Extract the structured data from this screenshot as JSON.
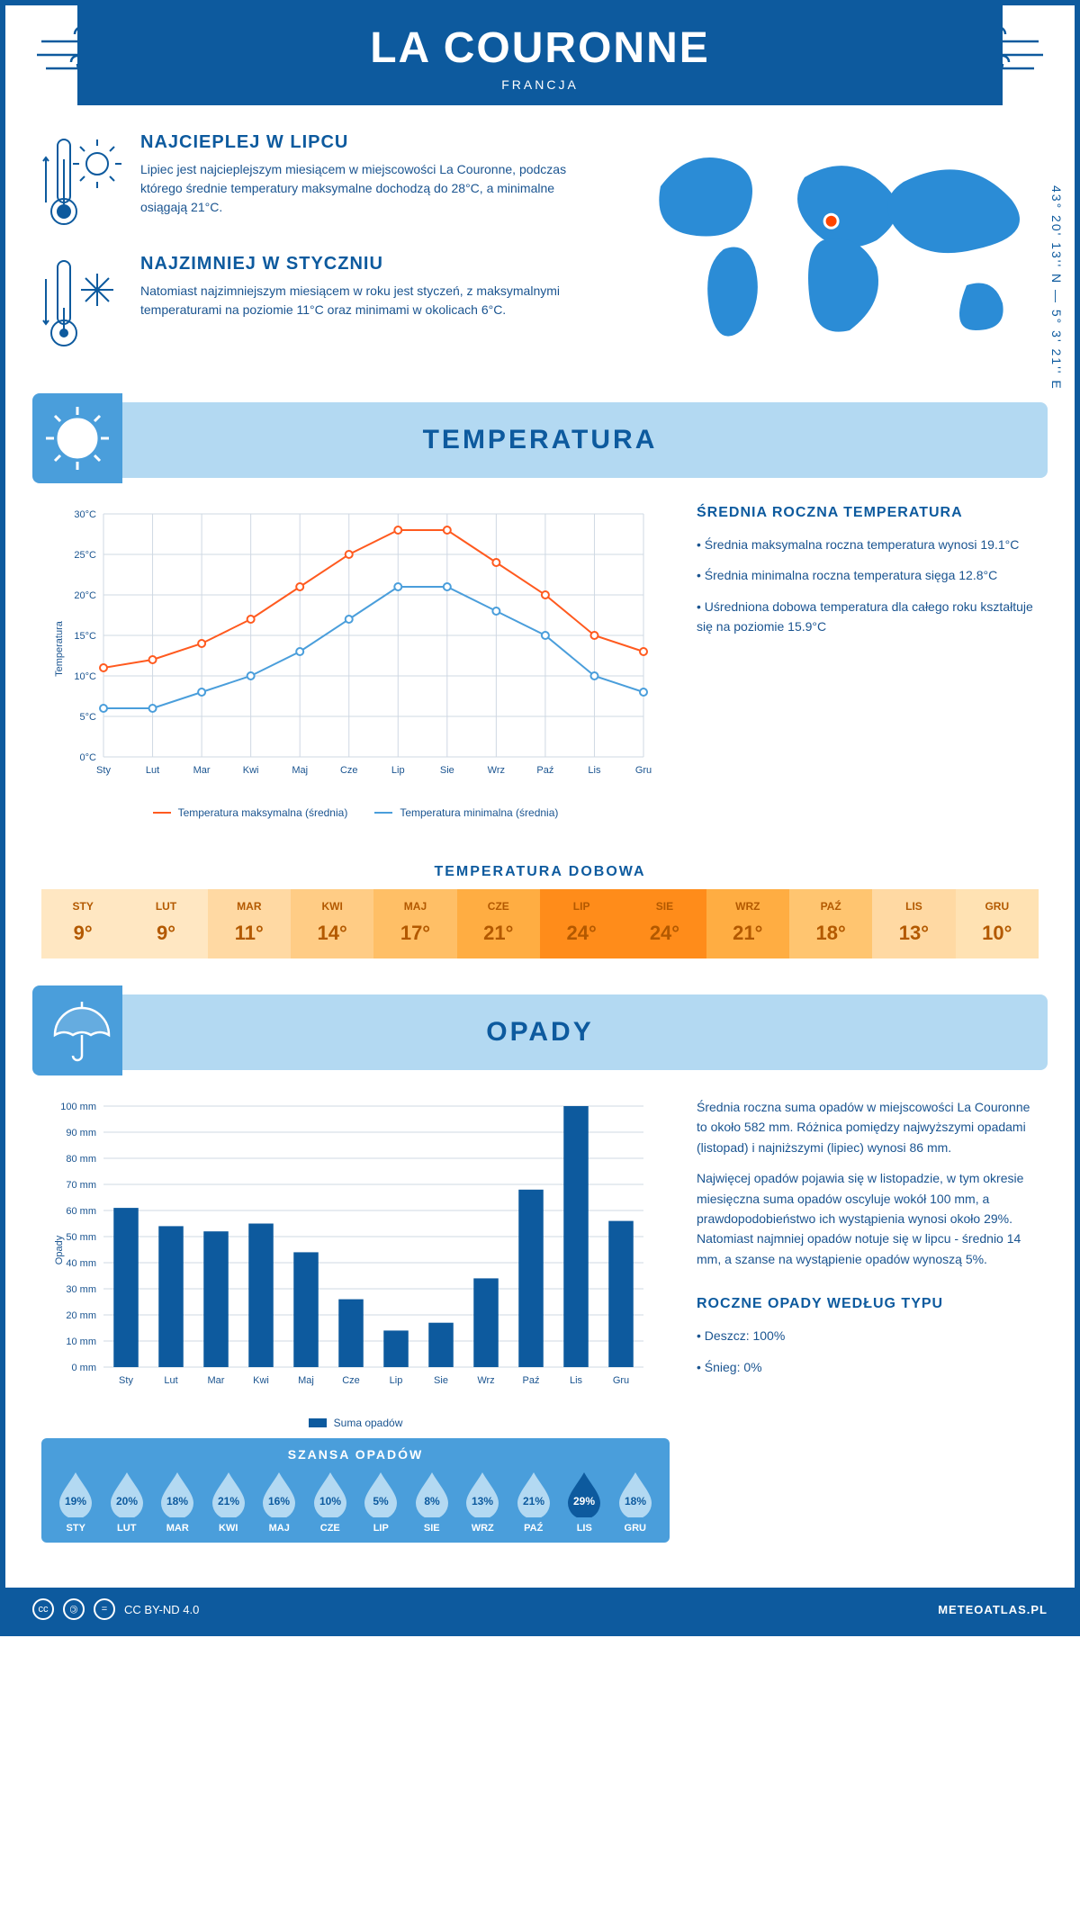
{
  "header": {
    "city": "LA COURONNE",
    "country": "FRANCJA"
  },
  "coords": "43° 20' 13'' N — 5° 3' 21'' E",
  "facts": {
    "hot": {
      "title": "NAJCIEPLEJ W LIPCU",
      "text": "Lipiec jest najcieplejszym miesiącem w miejscowości La Couronne, podczas którego średnie temperatury maksymalne dochodzą do 28°C, a minimalne osiągają 21°C."
    },
    "cold": {
      "title": "NAJZIMNIEJ W STYCZNIU",
      "text": "Natomiast najzimniejszym miesiącem w roku jest styczeń, z maksymalnymi temperaturami na poziomie 11°C oraz minimami w okolicach 6°C."
    }
  },
  "map": {
    "marker_x": 0.52,
    "marker_y": 0.38,
    "land_color": "#2b8cd6",
    "marker_color": "#ff4500"
  },
  "temp_section": {
    "title": "TEMPERATURA",
    "side_title": "ŚREDNIA ROCZNA TEMPERATURA",
    "bullets": [
      "• Średnia maksymalna roczna temperatura wynosi 19.1°C",
      "• Średnia minimalna roczna temperatura sięga 12.8°C",
      "• Uśredniona dobowa temperatura dla całego roku kształtuje się na poziomie 15.9°C"
    ],
    "chart": {
      "months": [
        "Sty",
        "Lut",
        "Mar",
        "Kwi",
        "Maj",
        "Cze",
        "Lip",
        "Sie",
        "Wrz",
        "Paź",
        "Lis",
        "Gru"
      ],
      "max": [
        11,
        12,
        14,
        17,
        21,
        25,
        28,
        28,
        24,
        20,
        15,
        13
      ],
      "min": [
        6,
        6,
        8,
        10,
        13,
        17,
        21,
        21,
        18,
        15,
        10,
        8
      ],
      "max_color": "#ff5a1f",
      "min_color": "#4a9edb",
      "grid_color": "#cfd8e3",
      "bg": "#ffffff",
      "ylabel": "Temperatura",
      "ylim": [
        0,
        30
      ],
      "ytick_step": 5,
      "ytick_suffix": "°C",
      "legend_max": "Temperatura maksymalna (średnia)",
      "legend_min": "Temperatura minimalna (średnia)"
    },
    "daily_title": "TEMPERATURA DOBOWA",
    "daily": {
      "months": [
        "STY",
        "LUT",
        "MAR",
        "KWI",
        "MAJ",
        "CZE",
        "LIP",
        "SIE",
        "WRZ",
        "PAŹ",
        "LIS",
        "GRU"
      ],
      "values": [
        "9°",
        "9°",
        "11°",
        "14°",
        "17°",
        "21°",
        "24°",
        "24°",
        "21°",
        "18°",
        "13°",
        "10°"
      ],
      "colors": [
        "#ffe7c2",
        "#ffe7c2",
        "#ffd9a3",
        "#ffcc85",
        "#ffbf66",
        "#ffad42",
        "#ff8c1a",
        "#ff8c1a",
        "#ffad42",
        "#ffc570",
        "#ffd9a3",
        "#ffe2b3"
      ],
      "text_color": "#b35900"
    }
  },
  "rain_section": {
    "title": "OPADY",
    "para1": "Średnia roczna suma opadów w miejscowości La Couronne to około 582 mm. Różnica pomiędzy najwyższymi opadami (listopad) i najniższymi (lipiec) wynosi 86 mm.",
    "para2": "Najwięcej opadów pojawia się w listopadzie, w tym okresie miesięczna suma opadów oscyluje wokół 100 mm, a prawdopodobieństwo ich wystąpienia wynosi około 29%. Natomiast najmniej opadów notuje się w lipcu - średnio 14 mm, a szanse na wystąpienie opadów wynoszą 5%.",
    "chart": {
      "months": [
        "Sty",
        "Lut",
        "Mar",
        "Kwi",
        "Maj",
        "Cze",
        "Lip",
        "Sie",
        "Wrz",
        "Paź",
        "Lis",
        "Gru"
      ],
      "values": [
        61,
        54,
        52,
        55,
        44,
        26,
        14,
        17,
        34,
        68,
        100,
        56
      ],
      "bar_color": "#0d5a9e",
      "grid_color": "#cfd8e3",
      "ylabel": "Opady",
      "ylim": [
        0,
        100
      ],
      "ytick_step": 10,
      "ytick_suffix": " mm",
      "legend": "Suma opadów"
    },
    "chance_title": "SZANSA OPADÓW",
    "chance": {
      "months": [
        "STY",
        "LUT",
        "MAR",
        "KWI",
        "MAJ",
        "CZE",
        "LIP",
        "SIE",
        "WRZ",
        "PAŹ",
        "LIS",
        "GRU"
      ],
      "values": [
        "19%",
        "20%",
        "18%",
        "21%",
        "16%",
        "10%",
        "5%",
        "8%",
        "13%",
        "21%",
        "29%",
        "18%"
      ],
      "max_index": 10,
      "drop_light": "#b3d9f2",
      "drop_dark": "#0d5a9e"
    },
    "type_title": "ROCZNE OPADY WEDŁUG TYPU",
    "type_bullets": [
      "• Deszcz: 100%",
      "• Śnieg: 0%"
    ]
  },
  "footer": {
    "license": "CC BY-ND 4.0",
    "site": "METEOATLAS.PL"
  },
  "colors": {
    "primary": "#0d5a9e",
    "light": "#b3d9f2",
    "mid": "#4a9edb"
  }
}
